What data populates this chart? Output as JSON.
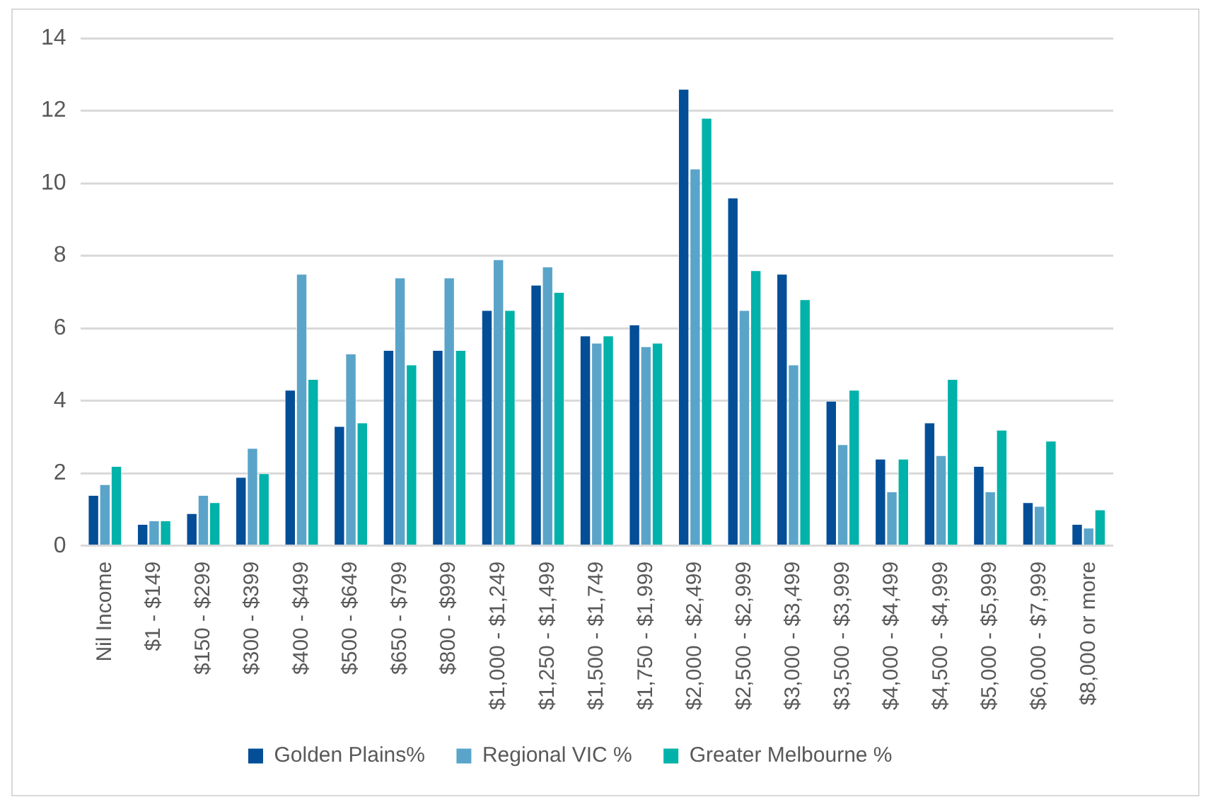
{
  "chart_data": {
    "type": "bar",
    "categories": [
      "Nil Income",
      "$1 - $149",
      "$150 - $299",
      "$300 - $399",
      "$400 - $499",
      "$500 - $649",
      "$650 - $799",
      "$800 - $999",
      "$1,000 - $1,249",
      "$1,250 - $1,499",
      "$1,500 - $1,749",
      "$1,750 - $1,999",
      "$2,000 - $2,499",
      "$2,500 - $2,999",
      "$3,000 - $3,499",
      "$3,500 - $3,999",
      "$4,000 - $4,499",
      "$4,500 - $4,999",
      "$5,000 - $5,999",
      "$6,000 - $7,999",
      "$8,000 or more"
    ],
    "series": [
      {
        "name": "Golden Plains%",
        "color": "#034e97",
        "values": [
          1.4,
          0.6,
          0.9,
          1.9,
          4.3,
          3.3,
          5.4,
          5.4,
          6.5,
          7.2,
          5.8,
          6.1,
          12.6,
          9.6,
          7.5,
          4.0,
          2.4,
          3.4,
          2.2,
          1.2,
          0.6
        ]
      },
      {
        "name": "Regional VIC %",
        "color": "#5ba4c9",
        "values": [
          1.7,
          0.7,
          1.4,
          2.7,
          7.5,
          5.3,
          7.4,
          7.4,
          7.9,
          7.7,
          5.6,
          5.5,
          10.4,
          6.5,
          5.0,
          2.8,
          1.5,
          2.5,
          1.5,
          1.1,
          0.5
        ]
      },
      {
        "name": "Greater Melbourne %",
        "color": "#00b2a9",
        "values": [
          2.2,
          0.7,
          1.2,
          2.0,
          4.6,
          3.4,
          5.0,
          5.4,
          6.5,
          7.0,
          5.8,
          5.6,
          11.8,
          7.6,
          6.8,
          4.3,
          2.4,
          4.6,
          3.2,
          2.9,
          1.0
        ]
      }
    ],
    "ylim": [
      0,
      14
    ],
    "yticks": [
      0,
      2,
      4,
      6,
      8,
      10,
      12,
      14
    ],
    "grid": "y",
    "legend": "bottom"
  }
}
